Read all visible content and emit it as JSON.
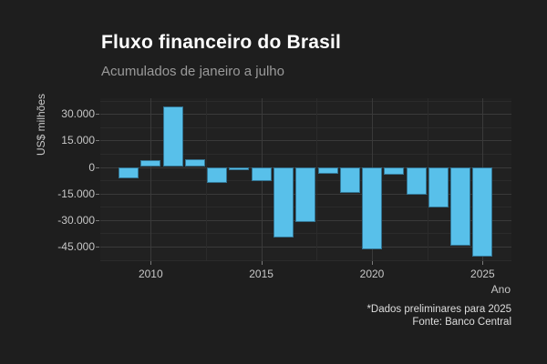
{
  "header": {
    "title": "Fluxo financeiro do Brasil",
    "subtitle": "Acumulados de janeiro a julho"
  },
  "footer": {
    "note": "*Dados preliminares para 2025",
    "source": "Fonte: Banco Central"
  },
  "chart_data": {
    "type": "bar",
    "title": "Fluxo financeiro do Brasil",
    "subtitle": "Acumulados de janeiro a julho",
    "xlabel": "Ano",
    "ylabel": "US$ milhões",
    "unit": "US$ milhões (acumulado janeiro a julho)",
    "categories": [
      2009,
      2010,
      2011,
      2012,
      2013,
      2014,
      2015,
      2016,
      2017,
      2018,
      2019,
      2020,
      2021,
      2022,
      2023,
      2024,
      2025
    ],
    "values": [
      -6500,
      4000,
      34000,
      4500,
      -9000,
      -2000,
      -8000,
      -40000,
      -31000,
      -4000,
      -14500,
      -46500,
      -4500,
      -15500,
      -23000,
      -44500,
      -50500
    ],
    "y_ticks": {
      "values": [
        30000,
        15000,
        0,
        -15000,
        -30000,
        -45000
      ],
      "labels": [
        "30.000",
        "15.000",
        "0",
        "-15.000",
        "-30.000",
        "-45.000"
      ]
    },
    "y_minor": [
      37500,
      22500,
      7500,
      -7500,
      -22500,
      -37500,
      -52500
    ],
    "x_ticks": {
      "values": [
        2010,
        2015,
        2020,
        2025
      ],
      "labels": [
        "2010",
        "2015",
        "2020",
        "2025"
      ]
    },
    "x_minor": [
      2012.5,
      2017.5,
      2022.5
    ],
    "ylim": [
      -53500,
      38800
    ],
    "xlim": [
      2008.4,
      2026.3
    ],
    "grid": "major+minor, horizontal and vertical",
    "legend": "none",
    "bar_color": "#58c0ea",
    "colors": {
      "background": "#1e1e1e",
      "panel": "#212121",
      "grid_major": "#3a3a3a",
      "grid_minor": "#2b2b2b",
      "title_text": "#ffffff",
      "subtitle_text": "#9a9a9a",
      "tick_text": "#c7c7c7",
      "footer_text": "#dddddd"
    }
  }
}
